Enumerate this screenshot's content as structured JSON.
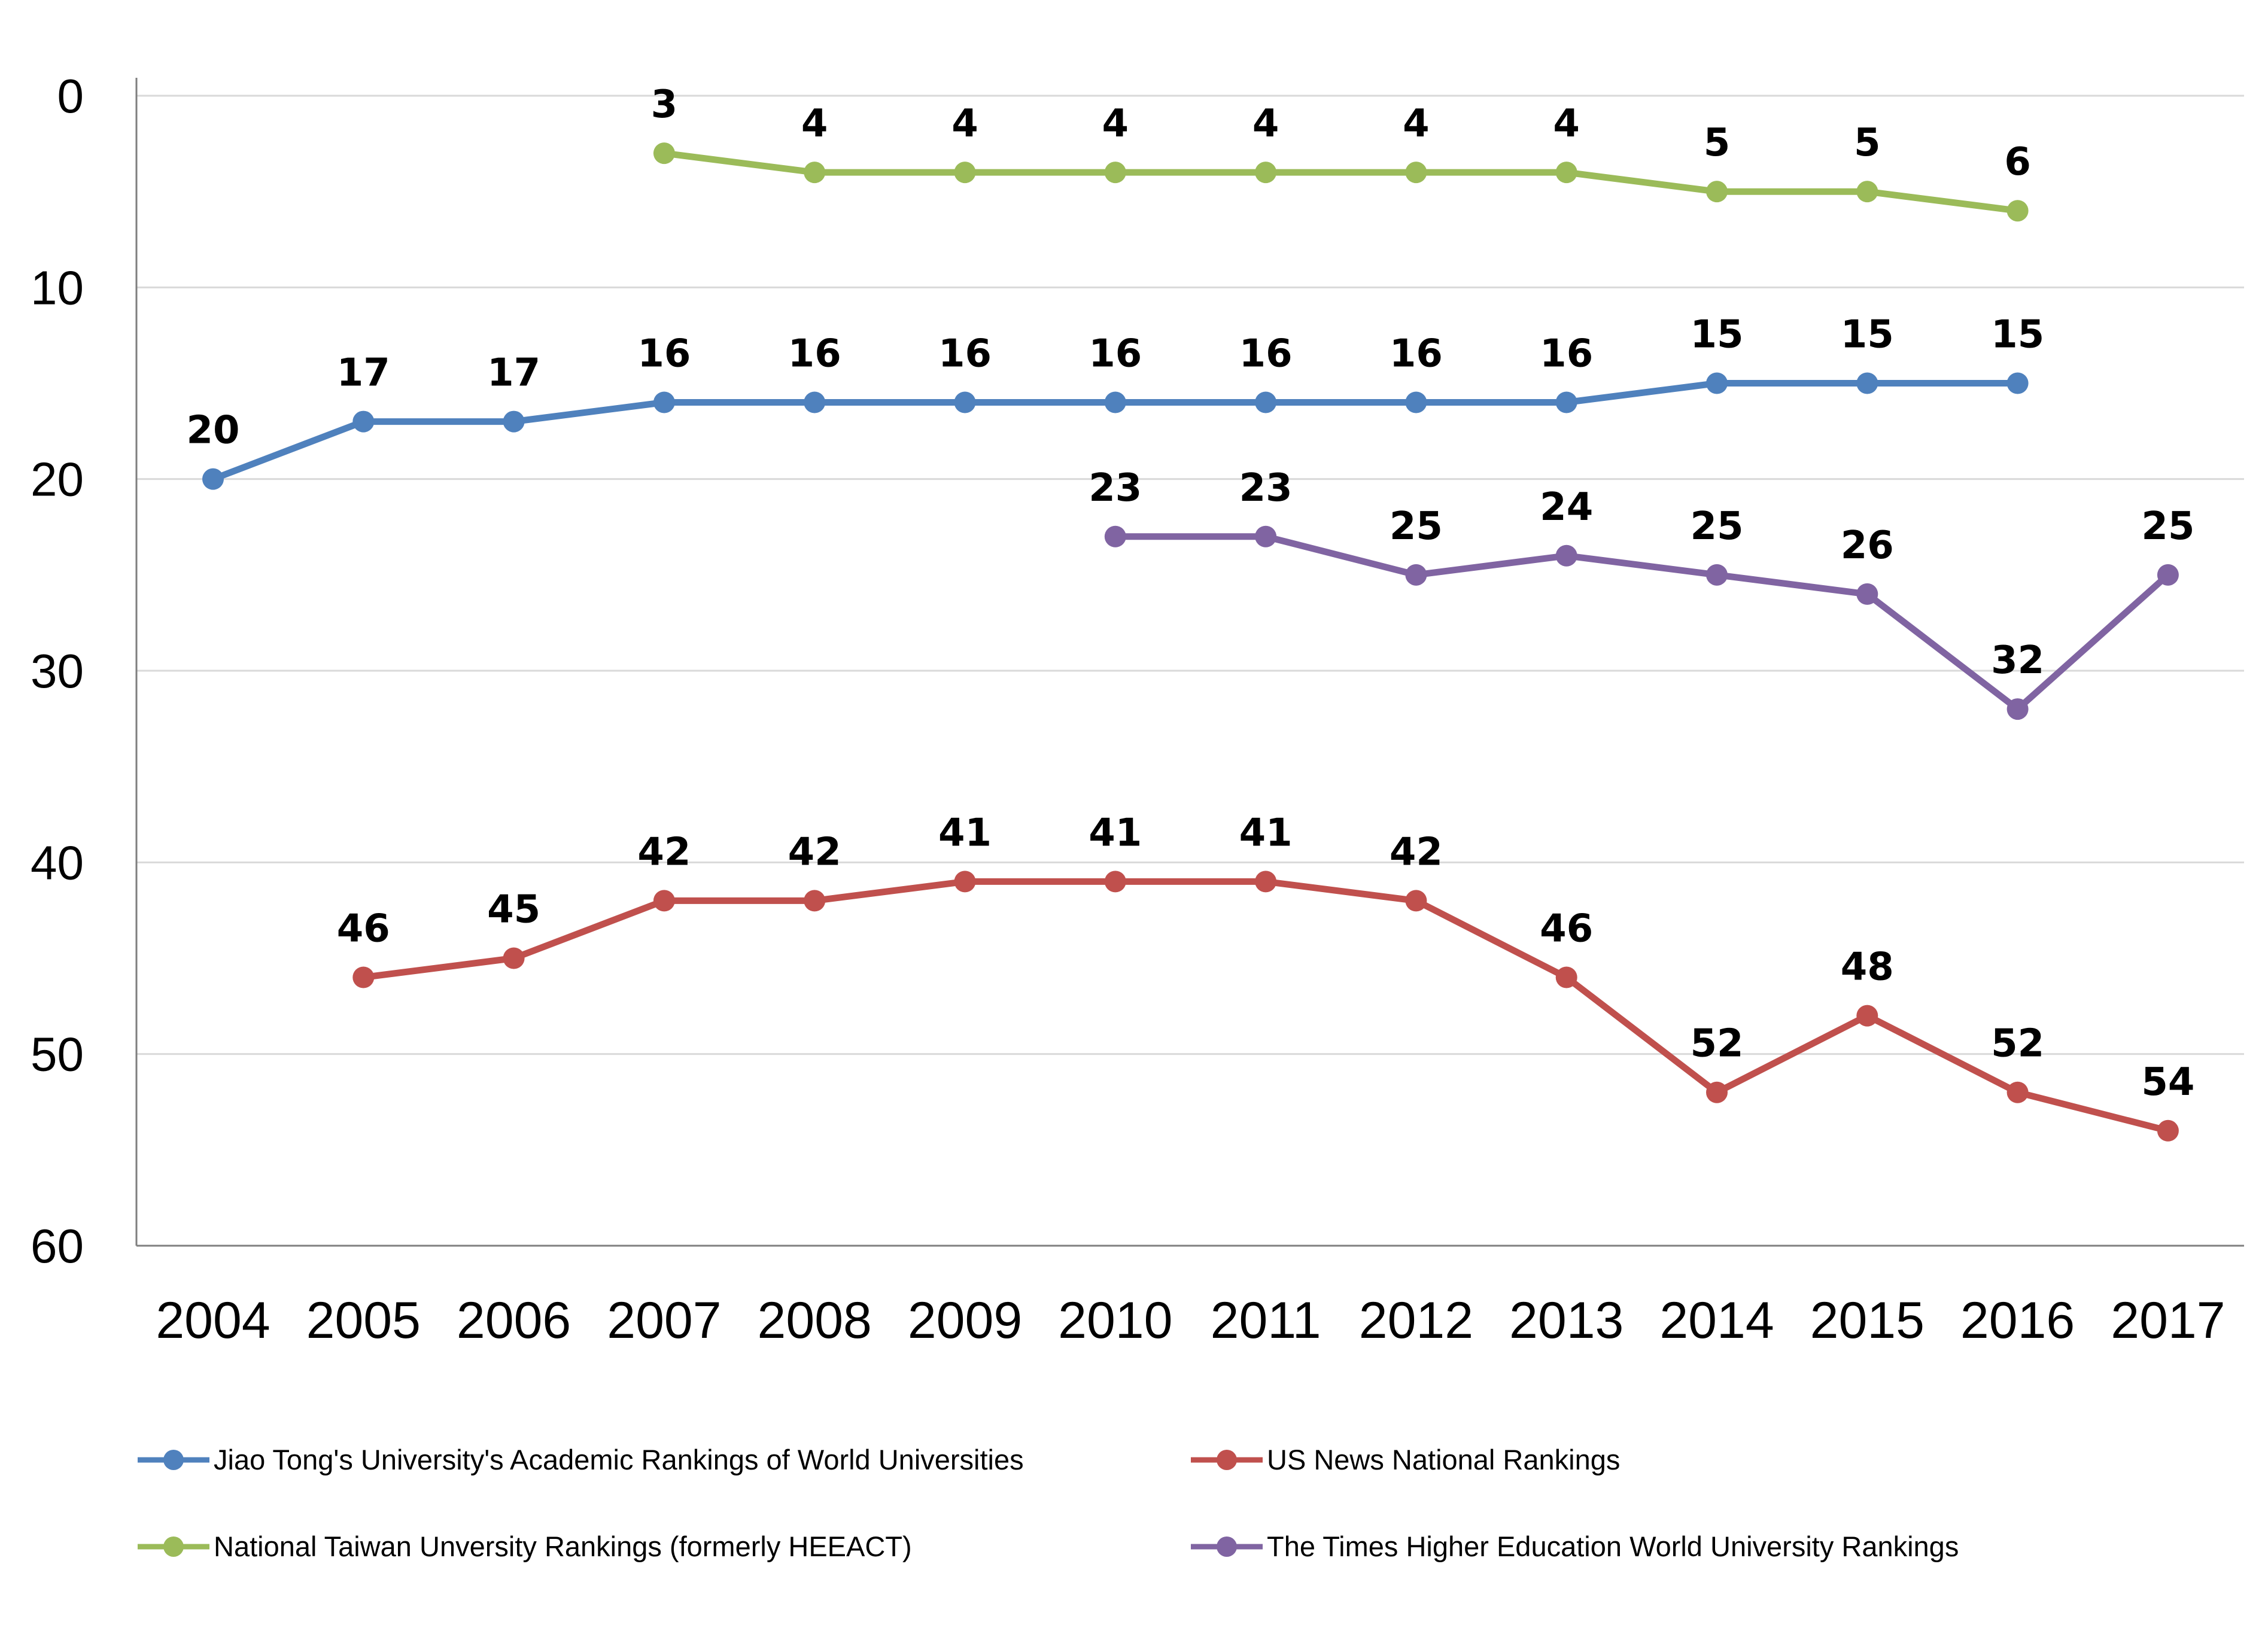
{
  "chart_data": {
    "type": "line",
    "title": "",
    "xlabel": "",
    "ylabel": "",
    "y_axis": {
      "reversed": true,
      "ylim": [
        0,
        60
      ],
      "ticks": [
        "0",
        "10",
        "20",
        "30",
        "40",
        "50",
        "60"
      ]
    },
    "grid": "horizontal",
    "legend_position": "bottom",
    "categories": [
      "2004",
      "2005",
      "2006",
      "2007",
      "2008",
      "2009",
      "2010",
      "2011",
      "2012",
      "2013",
      "2014",
      "2015",
      "2016",
      "2017"
    ],
    "series": [
      {
        "name": "Jiao Tong's University's Academic Rankings of World Universities",
        "color": "#4F81BD",
        "values": [
          20,
          17,
          17,
          16,
          16,
          16,
          16,
          16,
          16,
          16,
          15,
          15,
          15,
          null
        ]
      },
      {
        "name": "US News National Rankings",
        "color": "#C0504D",
        "values": [
          null,
          46,
          45,
          42,
          42,
          41,
          41,
          41,
          42,
          46,
          52,
          48,
          52,
          54
        ]
      },
      {
        "name": "National Taiwan Unversity Rankings (formerly HEEACT)",
        "color": "#9BBB59",
        "values": [
          null,
          null,
          null,
          3,
          4,
          4,
          4,
          4,
          4,
          4,
          5,
          5,
          6,
          null
        ]
      },
      {
        "name": "The Times Higher Education World University Rankings",
        "color": "#8064A2",
        "values": [
          null,
          null,
          null,
          null,
          null,
          null,
          23,
          23,
          25,
          24,
          25,
          26,
          32,
          25
        ]
      }
    ]
  }
}
